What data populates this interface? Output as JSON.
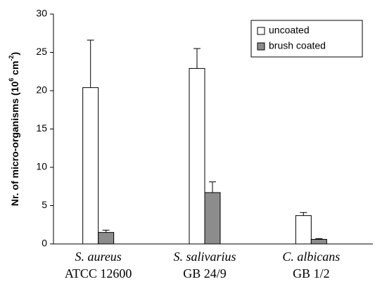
{
  "chart_data": {
    "type": "bar",
    "y_label_parts": [
      "Nr. of micro-organisms (10",
      "6",
      " cm",
      "-2",
      ")"
    ],
    "categories": [
      "S. aureus",
      "S. salivarius",
      "C. albicans"
    ],
    "category_sublabels": [
      "ATCC 12600",
      "GB 24/9",
      "GB 1/2"
    ],
    "series": [
      {
        "name": "uncoated",
        "color": "#ffffff",
        "values": [
          20.4,
          22.9,
          3.7
        ],
        "errors": [
          6.2,
          2.6,
          0.4
        ]
      },
      {
        "name": "brush coated",
        "color": "#8c8c8c",
        "values": [
          1.5,
          6.7,
          0.6
        ],
        "errors": [
          0.3,
          1.4,
          0.1
        ]
      }
    ],
    "ylim": [
      0,
      30
    ],
    "yticks": [
      0,
      5,
      10,
      15,
      20,
      25,
      30
    ],
    "grid": false,
    "legend": "upper right"
  }
}
